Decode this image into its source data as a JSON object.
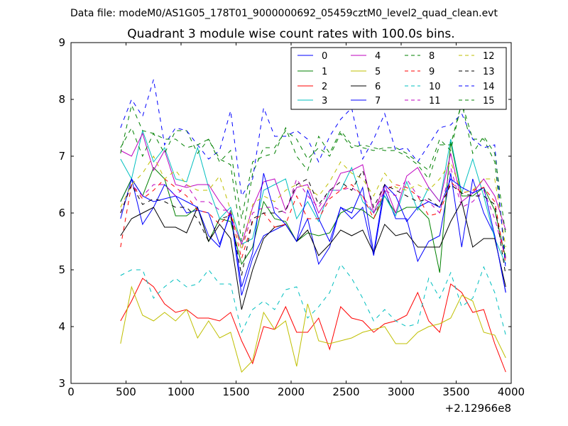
{
  "suptitle": "Data file: modeM0/AS1G05_178T01_9000000692_05459cztM0_level2_quad_clean.evt",
  "chart_data": {
    "type": "line",
    "title": "Quadrant 3 module wise count rates with 100.0s bins.",
    "xlabel": "",
    "ylabel": "",
    "x_offset_label": "+2.12966e8",
    "xlim": [
      0,
      4000
    ],
    "ylim": [
      3,
      9
    ],
    "xticks": [
      0,
      500,
      1000,
      1500,
      2000,
      2500,
      3000,
      3500,
      4000
    ],
    "yticks": [
      3,
      4,
      5,
      6,
      7,
      8,
      9
    ],
    "legend_position": "top-right",
    "legend_columns": 4,
    "x": [
      450,
      550,
      650,
      750,
      850,
      950,
      1050,
      1150,
      1250,
      1350,
      1450,
      1550,
      1650,
      1750,
      1850,
      1950,
      2050,
      2150,
      2250,
      2350,
      2450,
      2550,
      2650,
      2750,
      2850,
      2950,
      3050,
      3150,
      3250,
      3350,
      3450,
      3550,
      3650,
      3750,
      3850,
      3950
    ],
    "series": [
      {
        "name": "0",
        "color": "#0000ff",
        "dash": "solid",
        "values": [
          6.2,
          6.6,
          5.8,
          6.1,
          6.5,
          6.3,
          6.0,
          6.05,
          6.0,
          5.45,
          6.0,
          4.55,
          5.2,
          5.6,
          5.7,
          5.8,
          5.5,
          5.9,
          5.1,
          5.4,
          6.1,
          5.9,
          6.1,
          5.25,
          6.4,
          5.9,
          5.9,
          5.15,
          5.5,
          5.6,
          6.7,
          5.4,
          6.6,
          6.0,
          5.6,
          4.6
        ]
      },
      {
        "name": "1",
        "color": "#008000",
        "dash": "solid",
        "values": [
          6.2,
          6.6,
          6.3,
          6.8,
          6.6,
          5.95,
          5.95,
          6.1,
          5.5,
          5.9,
          5.85,
          5.1,
          5.4,
          6.2,
          5.9,
          5.85,
          5.5,
          5.65,
          5.6,
          5.65,
          6.0,
          6.1,
          6.05,
          5.9,
          6.3,
          6.0,
          6.1,
          6.1,
          5.9,
          4.95,
          7.25,
          6.3,
          6.3,
          6.45,
          6.05,
          5.2
        ]
      },
      {
        "name": "2",
        "color": "#ff0000",
        "dash": "solid",
        "values": [
          4.1,
          4.45,
          4.85,
          4.7,
          4.4,
          4.25,
          4.3,
          4.15,
          4.15,
          4.1,
          4.25,
          3.75,
          3.35,
          4.0,
          3.95,
          4.35,
          3.9,
          3.9,
          4.15,
          3.6,
          4.35,
          4.15,
          4.1,
          3.9,
          4.05,
          4.1,
          4.2,
          4.6,
          4.1,
          3.9,
          4.75,
          4.6,
          4.25,
          4.3,
          3.7,
          3.2
        ]
      },
      {
        "name": "3",
        "color": "#00bfbf",
        "dash": "solid",
        "values": [
          6.95,
          6.6,
          7.45,
          6.9,
          7.15,
          6.6,
          6.55,
          7.15,
          6.45,
          5.9,
          6.1,
          5.45,
          5.55,
          6.4,
          6.5,
          6.6,
          5.9,
          6.2,
          5.85,
          6.4,
          6.4,
          6.8,
          6.2,
          6.0,
          6.3,
          5.95,
          6.55,
          6.05,
          6.45,
          6.2,
          7.3,
          6.35,
          6.95,
          6.3,
          5.55,
          5.1
        ]
      },
      {
        "name": "4",
        "color": "#bf00bf",
        "dash": "solid",
        "values": [
          7.1,
          7.0,
          7.4,
          6.75,
          7.1,
          6.5,
          6.45,
          6.5,
          6.5,
          6.2,
          5.95,
          5.45,
          6.1,
          6.55,
          6.6,
          6.05,
          6.45,
          6.5,
          6.0,
          6.3,
          6.7,
          6.75,
          6.85,
          6.0,
          6.5,
          6.0,
          6.65,
          6.8,
          6.45,
          6.2,
          7.05,
          6.2,
          6.35,
          6.6,
          6.3,
          5.7
        ]
      },
      {
        "name": "5",
        "color": "#bfbf00",
        "dash": "solid",
        "values": [
          3.7,
          4.7,
          4.2,
          4.1,
          4.25,
          4.1,
          4.3,
          3.8,
          4.1,
          3.8,
          3.9,
          3.2,
          3.4,
          4.25,
          3.95,
          4.1,
          3.3,
          4.4,
          3.75,
          3.7,
          3.75,
          3.8,
          3.9,
          3.95,
          4.0,
          3.7,
          3.7,
          3.9,
          4.0,
          4.05,
          4.15,
          4.55,
          4.45,
          3.9,
          3.85,
          3.45
        ]
      },
      {
        "name": "6",
        "color": "#000000",
        "dash": "solid",
        "values": [
          5.6,
          5.9,
          6.0,
          6.1,
          5.75,
          5.75,
          5.65,
          6.1,
          5.5,
          5.8,
          5.55,
          4.3,
          5.0,
          5.55,
          5.75,
          5.8,
          5.5,
          5.7,
          5.25,
          5.45,
          5.7,
          5.6,
          5.7,
          5.3,
          5.8,
          5.6,
          5.65,
          5.4,
          5.4,
          5.4,
          5.85,
          6.2,
          5.4,
          5.55,
          5.55,
          4.7
        ]
      },
      {
        "name": "7",
        "color": "#0000ff",
        "dash": "solid",
        "values": [
          5.9,
          6.6,
          6.3,
          6.2,
          6.25,
          6.3,
          6.2,
          6.1,
          5.6,
          5.4,
          6.05,
          4.7,
          5.3,
          6.7,
          6.0,
          5.8,
          5.5,
          6.4,
          5.9,
          5.5,
          6.1,
          6.0,
          6.45,
          5.3,
          6.5,
          6.3,
          5.85,
          6.1,
          6.2,
          6.1,
          6.6,
          6.45,
          6.35,
          6.45,
          5.6,
          4.6
        ]
      },
      {
        "name": "8",
        "color": "#008000",
        "dash": "dashed",
        "values": [
          7.15,
          7.5,
          7.0,
          7.4,
          7.05,
          7.45,
          7.45,
          7.05,
          7.3,
          6.95,
          6.85,
          5.5,
          6.7,
          7.15,
          7.15,
          7.45,
          7.3,
          6.95,
          7.15,
          7.0,
          7.4,
          7.15,
          7.2,
          7.15,
          7.1,
          7.1,
          7.0,
          6.85,
          6.6,
          7.2,
          7.2,
          7.95,
          7.3,
          7.3,
          6.9,
          5.2
        ]
      },
      {
        "name": "9",
        "color": "#ff0000",
        "dash": "dashed",
        "values": [
          5.4,
          6.5,
          6.25,
          6.4,
          6.6,
          6.45,
          6.3,
          6.05,
          6.0,
          5.8,
          6.0,
          5.2,
          5.85,
          6.0,
          5.75,
          5.8,
          6.3,
          5.9,
          5.9,
          6.25,
          6.4,
          6.5,
          6.3,
          5.9,
          6.4,
          6.5,
          6.45,
          6.3,
          5.95,
          6.0,
          6.55,
          6.35,
          6.4,
          6.45,
          6.2,
          5.1
        ]
      },
      {
        "name": "10",
        "color": "#00bfbf",
        "dash": "dashed",
        "values": [
          4.9,
          5.0,
          5.0,
          4.5,
          4.7,
          4.85,
          4.7,
          4.75,
          5.0,
          4.75,
          4.75,
          3.9,
          4.3,
          4.45,
          4.3,
          4.65,
          4.7,
          4.15,
          4.35,
          4.6,
          5.1,
          4.85,
          4.5,
          4.1,
          4.3,
          4.1,
          4.0,
          4.05,
          4.85,
          4.5,
          4.95,
          4.35,
          4.5,
          5.05,
          4.6,
          3.85
        ]
      },
      {
        "name": "11",
        "color": "#bf00bf",
        "dash": "dashed",
        "values": [
          6.0,
          6.5,
          6.3,
          6.5,
          6.5,
          6.3,
          6.5,
          6.2,
          6.2,
          6.05,
          6.05,
          5.35,
          6.0,
          6.1,
          6.1,
          6.0,
          6.6,
          6.3,
          6.1,
          6.4,
          6.4,
          6.45,
          6.3,
          6.0,
          6.4,
          6.3,
          6.6,
          6.3,
          6.2,
          6.0,
          6.8,
          6.1,
          6.2,
          6.4,
          5.9,
          5.2
        ]
      },
      {
        "name": "12",
        "color": "#bfbf00",
        "dash": "dashed",
        "values": [
          6.1,
          6.5,
          6.7,
          7.0,
          6.6,
          6.75,
          6.5,
          6.4,
          6.4,
          6.65,
          6.05,
          5.35,
          6.15,
          6.3,
          6.2,
          6.4,
          6.5,
          6.45,
          6.3,
          6.55,
          6.9,
          6.7,
          6.6,
          6.3,
          6.7,
          6.45,
          6.4,
          6.5,
          6.4,
          6.6,
          6.9,
          6.35,
          6.4,
          6.6,
          6.6,
          5.4
        ]
      },
      {
        "name": "13",
        "color": "#000000",
        "dash": "dashed",
        "values": [
          6.0,
          6.5,
          6.15,
          6.25,
          6.2,
          6.1,
          6.1,
          5.9,
          5.5,
          5.9,
          5.95,
          4.9,
          5.9,
          6.0,
          6.0,
          6.05,
          6.5,
          6.6,
          6.15,
          6.4,
          6.55,
          6.4,
          6.75,
          6.1,
          6.5,
          6.4,
          6.3,
          6.2,
          6.25,
          6.1,
          6.5,
          6.35,
          6.3,
          6.3,
          6.15,
          4.9
        ]
      },
      {
        "name": "14",
        "color": "#0000ff",
        "dash": "dashed",
        "values": [
          7.5,
          8.0,
          7.7,
          8.35,
          7.2,
          7.5,
          7.45,
          7.2,
          6.95,
          7.1,
          7.8,
          6.3,
          6.6,
          7.85,
          7.35,
          7.35,
          7.45,
          7.3,
          6.9,
          7.35,
          7.65,
          7.85,
          6.95,
          7.3,
          7.75,
          7.1,
          7.15,
          6.9,
          7.2,
          7.5,
          7.55,
          7.75,
          7.3,
          7.15,
          7.2,
          5.0
        ]
      },
      {
        "name": "15",
        "color": "#008000",
        "dash": "dashed",
        "values": [
          7.05,
          7.9,
          7.45,
          7.4,
          7.3,
          7.3,
          7.15,
          7.2,
          7.3,
          6.9,
          7.1,
          5.9,
          6.9,
          7.0,
          7.05,
          7.5,
          7.0,
          6.75,
          7.35,
          7.05,
          7.45,
          7.2,
          7.15,
          7.1,
          7.15,
          7.15,
          7.05,
          6.9,
          6.75,
          7.3,
          7.1,
          7.95,
          7.05,
          7.35,
          7.05,
          5.6
        ]
      }
    ]
  }
}
